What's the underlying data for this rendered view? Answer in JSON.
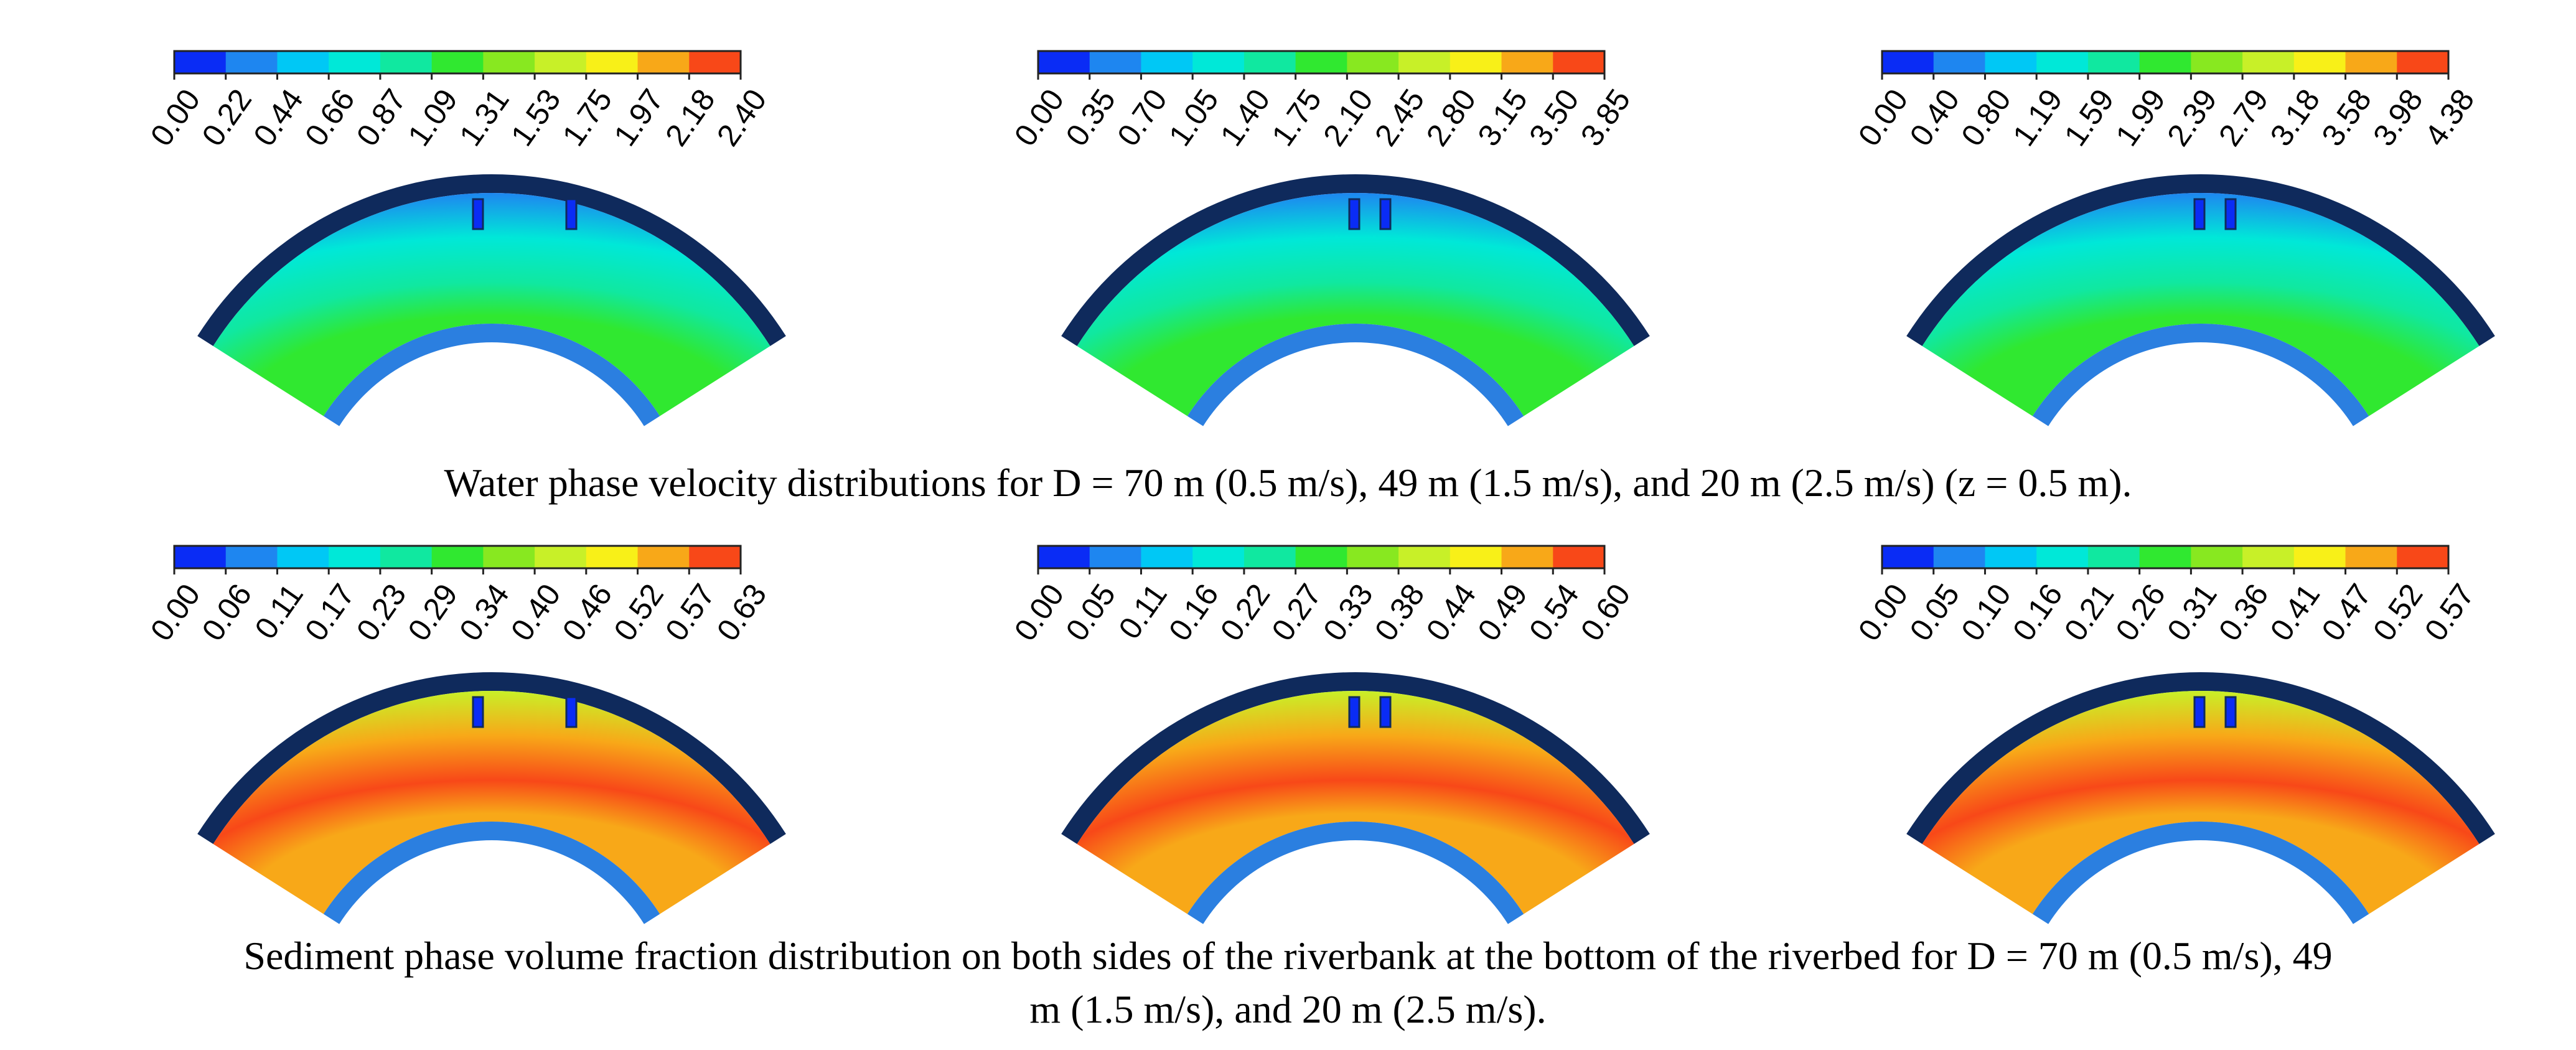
{
  "captions": {
    "water": "Water phase velocity distributions for D = 70 m (0.5 m/s), 49 m (1.5 m/s), and 20 m (2.5 m/s) (z = 0.5 m).",
    "sediment_line1": "Sediment phase volume fraction distribution on both sides of the riverbank at the bottom of the riverbed for D = 70 m (0.5 m/s), 49",
    "sediment_line2": "m (1.5 m/s), and 20 m (2.5 m/s)."
  },
  "colormap": [
    "#0a2cf5",
    "#1e86f0",
    "#00c8f5",
    "#00e8d8",
    "#10e8a0",
    "#30e830",
    "#88e820",
    "#c8f028",
    "#f8f018",
    "#f8a818",
    "#f84818"
  ],
  "panels": [
    {
      "row": "water",
      "ticks": [
        "0.00",
        "0.22",
        "0.44",
        "0.66",
        "0.87",
        "1.09",
        "1.31",
        "1.53",
        "1.75",
        "1.97",
        "2.18",
        "2.40"
      ]
    },
    {
      "row": "water",
      "ticks": [
        "0.00",
        "0.35",
        "0.70",
        "1.05",
        "1.40",
        "1.75",
        "2.10",
        "2.45",
        "2.80",
        "3.15",
        "3.50",
        "3.85"
      ]
    },
    {
      "row": "water",
      "ticks": [
        "0.00",
        "0.40",
        "0.80",
        "1.19",
        "1.59",
        "1.99",
        "2.39",
        "2.79",
        "3.18",
        "3.58",
        "3.98",
        "4.38"
      ]
    },
    {
      "row": "sediment",
      "ticks": [
        "0.00",
        "0.06",
        "0.11",
        "0.17",
        "0.23",
        "0.29",
        "0.34",
        "0.40",
        "0.46",
        "0.52",
        "0.57",
        "0.63"
      ]
    },
    {
      "row": "sediment",
      "ticks": [
        "0.00",
        "0.05",
        "0.11",
        "0.16",
        "0.22",
        "0.27",
        "0.33",
        "0.38",
        "0.44",
        "0.49",
        "0.54",
        "0.60"
      ]
    },
    {
      "row": "sediment",
      "ticks": [
        "0.00",
        "0.05",
        "0.10",
        "0.16",
        "0.21",
        "0.26",
        "0.31",
        "0.36",
        "0.41",
        "0.47",
        "0.52",
        "0.57"
      ]
    }
  ]
}
